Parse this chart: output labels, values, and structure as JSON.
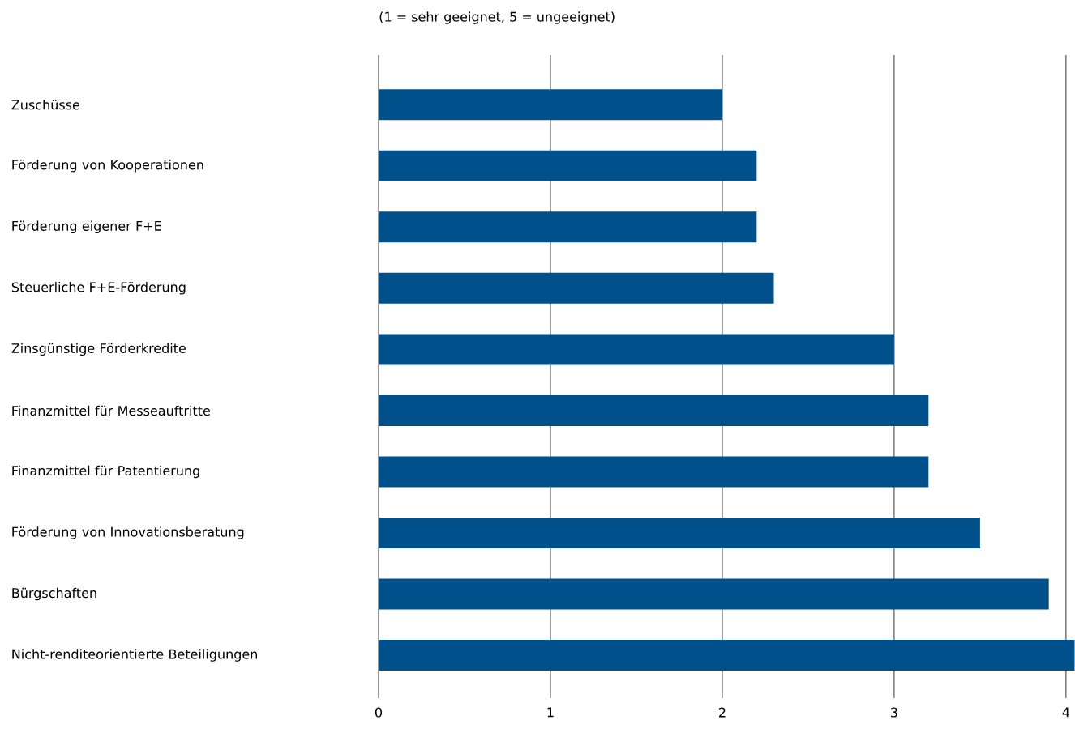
{
  "chart_data": {
    "type": "bar",
    "orientation": "horizontal",
    "title": "(1 = sehr geeignet, 5 = ungeeignet)",
    "categories": [
      "Zuschüsse",
      "Förderung von Kooperationen",
      "Förderung eigener F+E",
      "Steuerliche F+E-Förderung",
      "Zinsgünstige Förderkredite",
      "Finanzmittel für Messeauftritte",
      "Finanzmittel für Patentierung",
      "Förderung von Innovationsberatung",
      "Bürgschaften",
      "Nicht-renditeorientierte Beteiligungen"
    ],
    "values": [
      2.0,
      2.2,
      2.2,
      2.3,
      3.0,
      3.2,
      3.2,
      3.5,
      3.9,
      4.05
    ],
    "color": "#00508c",
    "xlim": [
      0,
      4.05
    ],
    "xticks": [
      0,
      1,
      2,
      3,
      4
    ],
    "grid": "x"
  }
}
